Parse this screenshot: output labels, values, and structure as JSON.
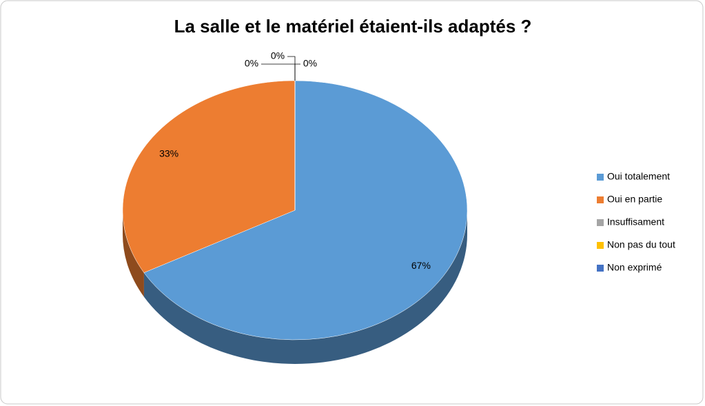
{
  "chart_data": {
    "type": "pie",
    "title": "La salle et le matériel étaient-ils adaptés ?",
    "categories": [
      "Oui totalement",
      "Oui en partie",
      "Insuffisament",
      "Non pas du tout",
      "Non exprimé"
    ],
    "values": [
      67,
      33,
      0,
      0,
      0
    ],
    "value_labels": [
      "67%",
      "33%",
      "0%",
      "0%",
      "0%"
    ],
    "colors": [
      "#5b9bd5",
      "#ed7d31",
      "#a5a5a5",
      "#ffc000",
      "#4472c4"
    ],
    "legend": "right"
  }
}
